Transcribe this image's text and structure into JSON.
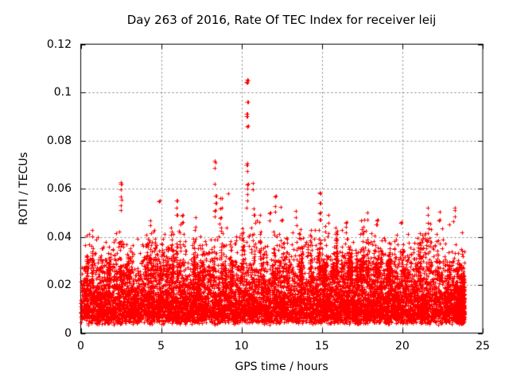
{
  "page": {
    "background": "#ffffff"
  },
  "chart_data": {
    "type": "scatter",
    "title": "Day 263 of 2016, Rate Of TEC Index for receiver leij",
    "xlabel": "GPS time / hours",
    "ylabel": "ROTI / TECUs",
    "xlim": [
      0,
      25
    ],
    "ylim": [
      0,
      0.12
    ],
    "xticks": [
      0,
      5,
      10,
      15,
      20,
      25
    ],
    "xtick_labels": [
      "0",
      "5",
      "10",
      "15",
      "20",
      "25"
    ],
    "yticks": [
      0,
      0.02,
      0.04,
      0.06,
      0.08,
      0.1,
      0.12
    ],
    "ytick_labels": [
      "0",
      "0.02",
      "0.04",
      "0.06",
      "0.08",
      "0.1",
      "0.12"
    ],
    "grid": true,
    "legend": "none",
    "marker": "plus",
    "colors": {
      "points": "#ff0000",
      "grid": "#7e7e7e",
      "axis": "#000000",
      "text": "#000000"
    },
    "data_time_range": [
      0.0,
      23.9
    ],
    "value_floor": 0.0035,
    "dense_band": [
      0.008,
      0.028
    ],
    "hourly_upper_envelope": [
      0.044,
      0.04,
      0.046,
      0.041,
      0.047,
      0.044,
      0.051,
      0.046,
      0.048,
      0.043,
      0.05,
      0.047,
      0.049,
      0.046,
      0.048,
      0.045,
      0.043,
      0.047,
      0.047,
      0.041,
      0.043,
      0.047,
      0.046,
      0.048
    ],
    "spikes": [
      {
        "t": 2.5,
        "values": [
          0.051,
          0.053,
          0.055,
          0.057,
          0.06,
          0.062,
          0.063
        ]
      },
      {
        "t": 4.9,
        "values": [
          0.055
        ]
      },
      {
        "t": 5.95,
        "values": [
          0.049,
          0.052,
          0.055
        ]
      },
      {
        "t": 6.3,
        "values": [
          0.046,
          0.049
        ]
      },
      {
        "t": 8.35,
        "values": [
          0.048,
          0.051,
          0.054,
          0.057,
          0.062,
          0.069,
          0.071,
          0.072
        ]
      },
      {
        "t": 8.7,
        "values": [
          0.044,
          0.048,
          0.052,
          0.056
        ]
      },
      {
        "t": 9.2,
        "values": [
          0.058
        ]
      },
      {
        "t": 10.35,
        "values": [
          0.052,
          0.055,
          0.058,
          0.06,
          0.062,
          0.067,
          0.07,
          0.071,
          0.086,
          0.09,
          0.091,
          0.096,
          0.104,
          0.105
        ]
      },
      {
        "t": 10.75,
        "values": [
          0.049,
          0.052,
          0.06,
          0.062
        ]
      },
      {
        "t": 11.15,
        "values": [
          0.046,
          0.049
        ]
      },
      {
        "t": 11.75,
        "values": [
          0.047,
          0.05
        ]
      },
      {
        "t": 12.1,
        "values": [
          0.05,
          0.053,
          0.057
        ]
      },
      {
        "t": 12.45,
        "values": [
          0.047,
          0.052
        ]
      },
      {
        "t": 13.4,
        "values": [
          0.045,
          0.048,
          0.051
        ]
      },
      {
        "t": 14.85,
        "values": [
          0.047,
          0.05,
          0.054,
          0.058
        ]
      },
      {
        "t": 15.4,
        "values": [
          0.046,
          0.049
        ]
      },
      {
        "t": 16.5,
        "values": [
          0.044,
          0.046
        ]
      },
      {
        "t": 17.85,
        "values": [
          0.047,
          0.05
        ]
      },
      {
        "t": 18.4,
        "values": [
          0.045,
          0.047
        ]
      },
      {
        "t": 19.9,
        "values": [
          0.046
        ]
      },
      {
        "t": 21.6,
        "values": [
          0.046,
          0.049,
          0.052
        ]
      },
      {
        "t": 22.3,
        "values": [
          0.047,
          0.05
        ]
      },
      {
        "t": 23.3,
        "values": [
          0.048,
          0.051,
          0.052
        ]
      }
    ],
    "render": {
      "n_cloud": 9000,
      "n_end_cluster": 380,
      "n_streaks": 120,
      "seed": 1337
    }
  }
}
